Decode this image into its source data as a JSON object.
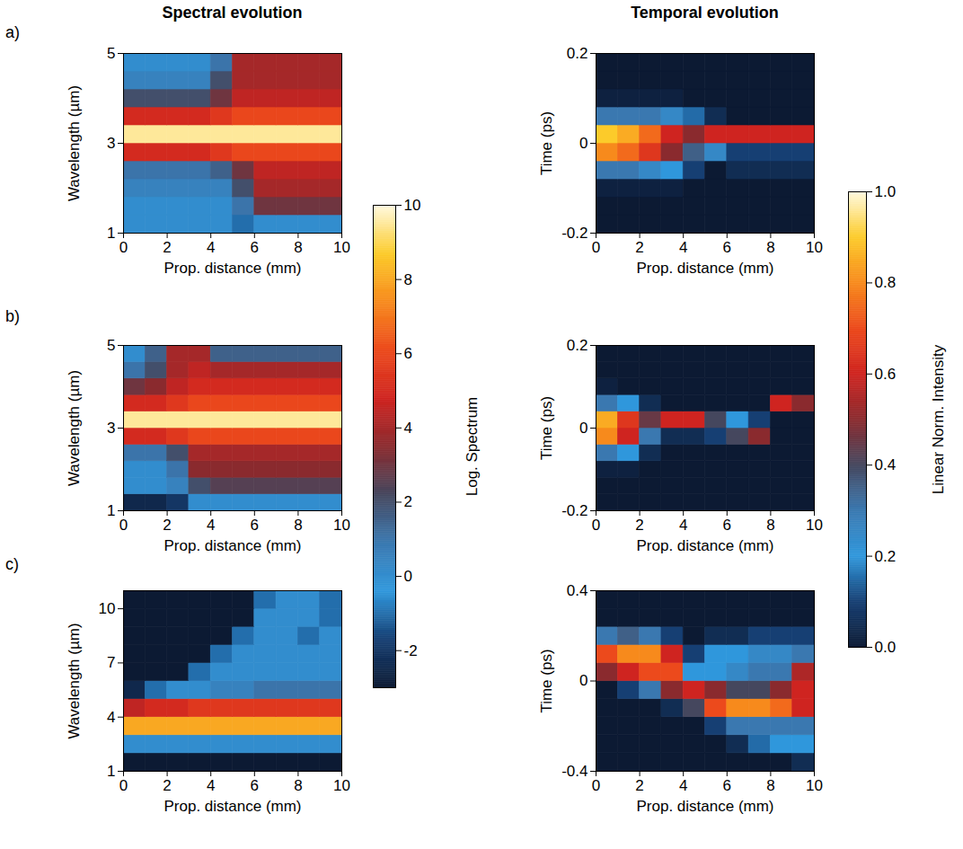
{
  "column_titles": [
    "Spectral evolution",
    "Temporal evolution"
  ],
  "panel_labels": [
    "a)",
    "b)",
    "c)"
  ],
  "colorbars": [
    {
      "label": "Log. Spectrum",
      "lim": [
        -3,
        10
      ],
      "ticks": [
        -2,
        0,
        2,
        4,
        6,
        8,
        10
      ]
    },
    {
      "label": "Linear Norm. Intensity",
      "lim": [
        0,
        1
      ],
      "ticks": [
        {
          "value": 0,
          "label": "0.0"
        },
        {
          "value": 0.2,
          "label": "0.2"
        },
        {
          "value": 0.4,
          "label": "0.4"
        },
        {
          "value": 0.6,
          "label": "0.6"
        },
        {
          "value": 0.8,
          "label": "0.8"
        },
        {
          "value": 1,
          "label": "1.0"
        }
      ]
    }
  ],
  "chart_data": [
    {
      "type": "heatmap",
      "xlabel": "Prop. distance (mm)",
      "ylabel": "Wavelength (µm)",
      "xlim": [
        0,
        10
      ],
      "ylim": [
        1,
        5
      ],
      "xticks": [
        0,
        2,
        4,
        6,
        8,
        10
      ],
      "yticks": [
        1,
        3,
        5
      ],
      "x": [
        0.5,
        1.5,
        2.5,
        3.5,
        4.5,
        5.5,
        6.5,
        7.5,
        8.5,
        9.5
      ],
      "y": [
        1.2,
        1.6,
        2.0,
        2.4,
        2.8,
        3.2,
        3.6,
        4.0,
        4.4,
        4.8
      ],
      "z": [
        [
          0,
          0,
          0,
          0,
          0,
          -1,
          0,
          0,
          0,
          0
        ],
        [
          0,
          0,
          0,
          0,
          0,
          1,
          3,
          3,
          3,
          3
        ],
        [
          0.5,
          0.5,
          0.5,
          0.5,
          0.5,
          2,
          4,
          4,
          4,
          4
        ],
        [
          1,
          1,
          1,
          1,
          1.5,
          3,
          4.5,
          4.5,
          4.5,
          4.5
        ],
        [
          5,
          5,
          5,
          5,
          5.5,
          6,
          6,
          6,
          6,
          6
        ],
        [
          9.5,
          9.5,
          9.5,
          9.5,
          9.5,
          9.5,
          9.5,
          9.5,
          9.5,
          9.5
        ],
        [
          5,
          5,
          5,
          5,
          5.5,
          6,
          6,
          6,
          6,
          6
        ],
        [
          2,
          2,
          2,
          2,
          3,
          4.5,
          4.5,
          4.5,
          4.5,
          4.5
        ],
        [
          0.5,
          0.5,
          0.5,
          0.5,
          2,
          4,
          4,
          4,
          4,
          4
        ],
        [
          0,
          0,
          0,
          0,
          1,
          4,
          4,
          4,
          4,
          4
        ]
      ]
    },
    {
      "type": "heatmap",
      "xlabel": "Prop. distance (mm)",
      "ylabel": "Time (ps)",
      "xlim": [
        0,
        10
      ],
      "ylim": [
        -0.2,
        0.2
      ],
      "xticks": [
        0,
        2,
        4,
        6,
        8,
        10
      ],
      "yticks": [
        -0.2,
        0,
        0.2
      ],
      "x": [
        0.5,
        1.5,
        2.5,
        3.5,
        4.5,
        5.5,
        6.5,
        7.5,
        8.5,
        9.5
      ],
      "y": [
        -0.18,
        -0.14,
        -0.1,
        -0.06,
        -0.02,
        0.02,
        0.06,
        0.1,
        0.14,
        0.18
      ],
      "z": [
        [
          0,
          0,
          0,
          0,
          0,
          0,
          0,
          0,
          0,
          0
        ],
        [
          0,
          0,
          0,
          0,
          0,
          0,
          0,
          0,
          0,
          0
        ],
        [
          0.02,
          0.02,
          0.02,
          0.02,
          0,
          0,
          0,
          0,
          0,
          0
        ],
        [
          0.3,
          0.3,
          0.25,
          0.2,
          0.1,
          0,
          0.05,
          0.05,
          0.05,
          0.05
        ],
        [
          0.8,
          0.75,
          0.65,
          0.5,
          0.35,
          0.25,
          0.1,
          0.1,
          0.1,
          0.1
        ],
        [
          0.9,
          0.85,
          0.75,
          0.6,
          0.5,
          0.6,
          0.6,
          0.6,
          0.6,
          0.6
        ],
        [
          0.3,
          0.3,
          0.3,
          0.25,
          0.15,
          0.05,
          0,
          0,
          0,
          0
        ],
        [
          0.02,
          0.02,
          0.02,
          0.02,
          0,
          0,
          0,
          0,
          0,
          0
        ],
        [
          0,
          0,
          0,
          0,
          0,
          0,
          0,
          0,
          0,
          0
        ],
        [
          0,
          0,
          0,
          0,
          0,
          0,
          0,
          0,
          0,
          0
        ]
      ]
    },
    {
      "type": "heatmap",
      "xlabel": "Prop. distance (mm)",
      "ylabel": "Wavelength (µm)",
      "xlim": [
        0,
        10
      ],
      "ylim": [
        1,
        5
      ],
      "xticks": [
        0,
        2,
        4,
        6,
        8,
        10
      ],
      "yticks": [
        1,
        3,
        5
      ],
      "x": [
        0.5,
        1.5,
        2.5,
        3.5,
        4.5,
        5.5,
        6.5,
        7.5,
        8.5,
        9.5
      ],
      "y": [
        1.2,
        1.6,
        2.0,
        2.4,
        2.8,
        3.2,
        3.6,
        4.0,
        4.4,
        4.8
      ],
      "z": [
        [
          -2.5,
          -2.5,
          -2,
          0,
          0,
          0,
          0,
          0,
          0,
          0
        ],
        [
          0,
          0,
          0.5,
          2,
          2.5,
          2.5,
          2.5,
          2.5,
          2.5,
          2.5
        ],
        [
          0,
          0,
          1,
          3.5,
          3.5,
          3.5,
          3.5,
          3.5,
          3.5,
          3.5
        ],
        [
          1,
          1,
          2,
          4,
          4,
          4,
          4,
          4,
          4,
          4
        ],
        [
          5,
          5,
          5.5,
          6,
          6,
          6,
          6,
          6,
          6,
          6
        ],
        [
          9.5,
          9.5,
          9.5,
          9.5,
          9.5,
          9.5,
          9.5,
          9.5,
          9.5,
          9.5
        ],
        [
          5,
          5,
          5.5,
          6,
          6,
          6,
          6,
          6,
          6,
          6
        ],
        [
          3,
          3.5,
          4.5,
          5,
          5,
          5,
          5,
          5,
          5,
          5
        ],
        [
          1,
          2,
          4,
          4.5,
          4,
          4,
          4,
          4,
          4,
          4
        ],
        [
          0,
          1.5,
          4,
          4,
          1.5,
          1.5,
          1.5,
          1.5,
          1.5,
          1.5
        ]
      ]
    },
    {
      "type": "heatmap",
      "xlabel": "Prop. distance (mm)",
      "ylabel": "Time (ps)",
      "xlim": [
        0,
        10
      ],
      "ylim": [
        -0.2,
        0.2
      ],
      "xticks": [
        0,
        2,
        4,
        6,
        8,
        10
      ],
      "yticks": [
        -0.2,
        0,
        0.2
      ],
      "x": [
        0.5,
        1.5,
        2.5,
        3.5,
        4.5,
        5.5,
        6.5,
        7.5,
        8.5,
        9.5
      ],
      "y": [
        -0.18,
        -0.14,
        -0.1,
        -0.06,
        -0.02,
        0.02,
        0.06,
        0.1,
        0.14,
        0.18
      ],
      "z": [
        [
          0,
          0,
          0,
          0,
          0,
          0,
          0,
          0,
          0,
          0
        ],
        [
          0,
          0,
          0,
          0,
          0,
          0,
          0,
          0,
          0,
          0
        ],
        [
          0.02,
          0.02,
          0,
          0,
          0,
          0,
          0,
          0,
          0,
          0
        ],
        [
          0.3,
          0.2,
          0.05,
          0,
          0,
          0,
          0,
          0,
          0,
          0
        ],
        [
          0.8,
          0.6,
          0.3,
          0.05,
          0.05,
          0.1,
          0.4,
          0.5,
          0,
          0
        ],
        [
          0.85,
          0.65,
          0.45,
          0.6,
          0.6,
          0.4,
          0.2,
          0.1,
          0,
          0
        ],
        [
          0.3,
          0.2,
          0.05,
          0,
          0,
          0,
          0,
          0,
          0.6,
          0.5
        ],
        [
          0.02,
          0,
          0,
          0,
          0,
          0,
          0,
          0,
          0,
          0
        ],
        [
          0,
          0,
          0,
          0,
          0,
          0,
          0,
          0,
          0,
          0
        ],
        [
          0,
          0,
          0,
          0,
          0,
          0,
          0,
          0,
          0,
          0
        ]
      ]
    },
    {
      "type": "heatmap",
      "xlabel": "Prop. distance (mm)",
      "ylabel": "Wavelength (µm)",
      "xlim": [
        0,
        10
      ],
      "ylim": [
        1,
        11
      ],
      "xticks": [
        0,
        2,
        4,
        6,
        8,
        10
      ],
      "yticks": [
        1,
        4,
        7,
        10
      ],
      "x": [
        0.5,
        1.5,
        2.5,
        3.5,
        4.5,
        5.5,
        6.5,
        7.5,
        8.5,
        9.5
      ],
      "y": [
        1.5,
        2.5,
        3.5,
        4.5,
        5.5,
        6.5,
        7.5,
        8.5,
        9.5,
        10.5
      ],
      "z": [
        [
          -3,
          -3,
          -3,
          -3,
          -3,
          -3,
          -3,
          -3,
          -3,
          -3
        ],
        [
          0,
          0,
          0,
          0,
          0,
          0,
          0,
          0,
          0,
          0
        ],
        [
          8,
          8,
          8,
          8,
          8,
          8,
          8,
          8,
          8,
          8
        ],
        [
          4.5,
          5,
          5,
          5.5,
          5.5,
          5.5,
          5.5,
          5.5,
          5.5,
          5.5
        ],
        [
          -2.5,
          -1,
          0,
          0,
          0.5,
          0.5,
          1,
          1,
          1,
          1
        ],
        [
          -3,
          -3,
          -3,
          -1,
          0,
          0,
          0,
          0,
          0,
          0
        ],
        [
          -3,
          -3,
          -3,
          -3,
          -1,
          0,
          0,
          0,
          0,
          0
        ],
        [
          -3,
          -3,
          -3,
          -3,
          -3,
          -1,
          0,
          0,
          -1,
          0
        ],
        [
          -3,
          -3,
          -3,
          -3,
          -3,
          -3,
          0,
          0,
          0,
          -1
        ],
        [
          -3,
          -3,
          -3,
          -3,
          -3,
          -3,
          -1,
          0,
          0,
          -1
        ]
      ]
    },
    {
      "type": "heatmap",
      "xlabel": "Prop. distance (mm)",
      "ylabel": "Time (ps)",
      "xlim": [
        0,
        10
      ],
      "ylim": [
        -0.4,
        0.4
      ],
      "xticks": [
        0,
        2,
        4,
        6,
        8,
        10
      ],
      "yticks": [
        -0.4,
        0,
        0.4
      ],
      "x": [
        0.5,
        1.5,
        2.5,
        3.5,
        4.5,
        5.5,
        6.5,
        7.5,
        8.5,
        9.5
      ],
      "y": [
        -0.36,
        -0.28,
        -0.2,
        -0.12,
        -0.04,
        0.04,
        0.12,
        0.2,
        0.28,
        0.36
      ],
      "z": [
        [
          0,
          0,
          0,
          0,
          0,
          0,
          0,
          0,
          0,
          0.05
        ],
        [
          0,
          0,
          0,
          0,
          0,
          0,
          0.05,
          0.15,
          0.2,
          0.2
        ],
        [
          0,
          0,
          0,
          0,
          0,
          0.1,
          0.3,
          0.3,
          0.3,
          0.3
        ],
        [
          0,
          0,
          0,
          0.05,
          0.4,
          0.7,
          0.8,
          0.8,
          0.75,
          0.6
        ],
        [
          0,
          0.1,
          0.3,
          0.5,
          0.6,
          0.5,
          0.4,
          0.4,
          0.5,
          0.6
        ],
        [
          0.5,
          0.6,
          0.7,
          0.7,
          0.2,
          0.2,
          0.25,
          0.3,
          0.3,
          0.55
        ],
        [
          0.7,
          0.8,
          0.8,
          0.6,
          0.1,
          0.2,
          0.2,
          0.25,
          0.25,
          0.3
        ],
        [
          0.3,
          0.35,
          0.3,
          0.1,
          0,
          0.05,
          0.05,
          0.1,
          0.1,
          0.1
        ],
        [
          0,
          0,
          0,
          0,
          0,
          0,
          0,
          0,
          0,
          0
        ],
        [
          0,
          0,
          0,
          0,
          0,
          0,
          0,
          0,
          0,
          0
        ]
      ]
    }
  ]
}
